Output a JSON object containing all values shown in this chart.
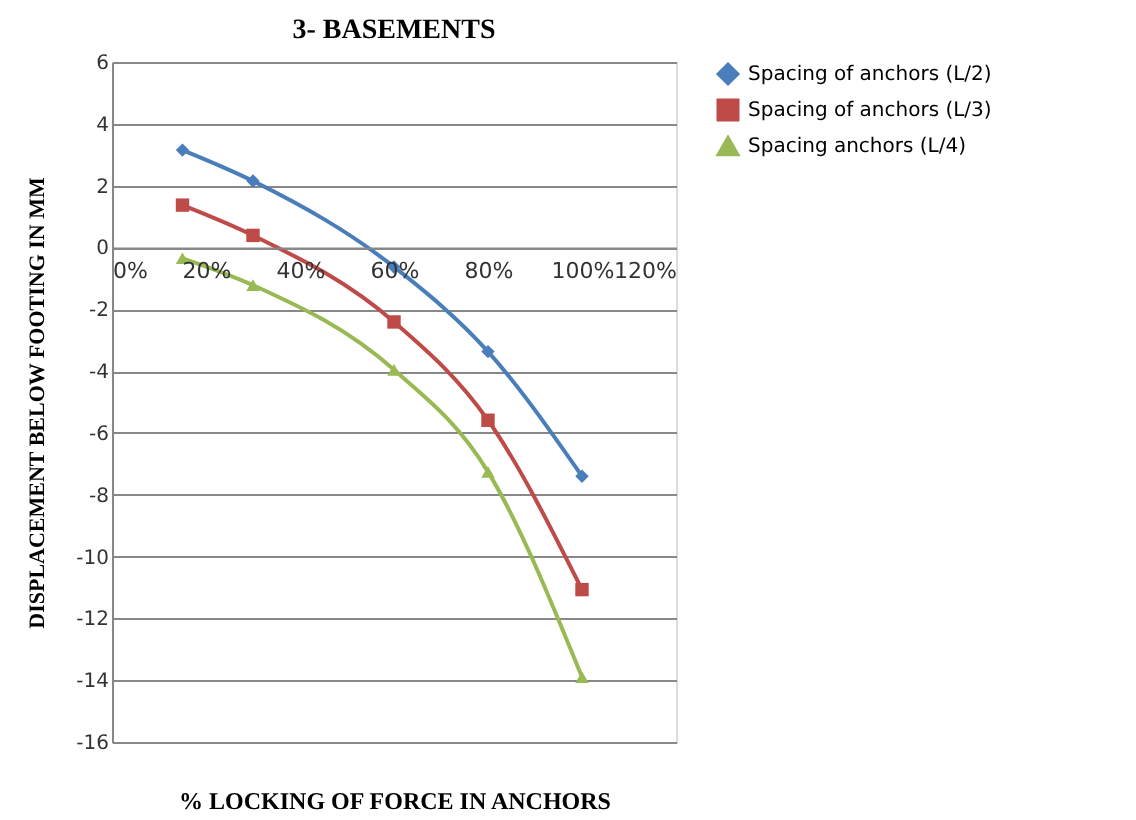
{
  "chart_data": {
    "type": "line",
    "title": "3- BASEMENTS",
    "xlabel": "% LOCKING OF FORCE IN ANCHORS",
    "ylabel": "DISPLACEMENT BELOW FOOTING IN MM",
    "x": [
      15,
      30,
      60,
      80,
      100
    ],
    "series": [
      {
        "name": "Spacing of anchors (L/2)",
        "color": "#4a7ebb",
        "marker": "diamond",
        "values": [
          3.15,
          2.15,
          -0.63,
          -3.37,
          -7.4
        ]
      },
      {
        "name": "Spacing of anchors (L/3)",
        "color": "#be4b48",
        "marker": "square",
        "values": [
          1.37,
          0.39,
          -2.41,
          -5.59,
          -11.07
        ]
      },
      {
        "name": "Spacing anchors (L/4)",
        "color": "#98b954",
        "marker": "triangle",
        "values": [
          -0.35,
          -1.22,
          -3.96,
          -7.26,
          -13.9
        ]
      }
    ],
    "xlim": [
      0,
      120
    ],
    "xticks": [
      {
        "value": 0,
        "label": "0%"
      },
      {
        "value": 20,
        "label": "20%"
      },
      {
        "value": 40,
        "label": "40%"
      },
      {
        "value": 60,
        "label": "60%"
      },
      {
        "value": 80,
        "label": "80%"
      },
      {
        "value": 100,
        "label": "100%"
      },
      {
        "value": 120,
        "label": "120%"
      }
    ],
    "ylim": [
      -16,
      6
    ],
    "yticks": [
      -16,
      -14,
      -12,
      -10,
      -8,
      -6,
      -4,
      -2,
      0,
      2,
      4,
      6
    ],
    "grid": "y",
    "legend": "right",
    "line_style": "solid"
  }
}
